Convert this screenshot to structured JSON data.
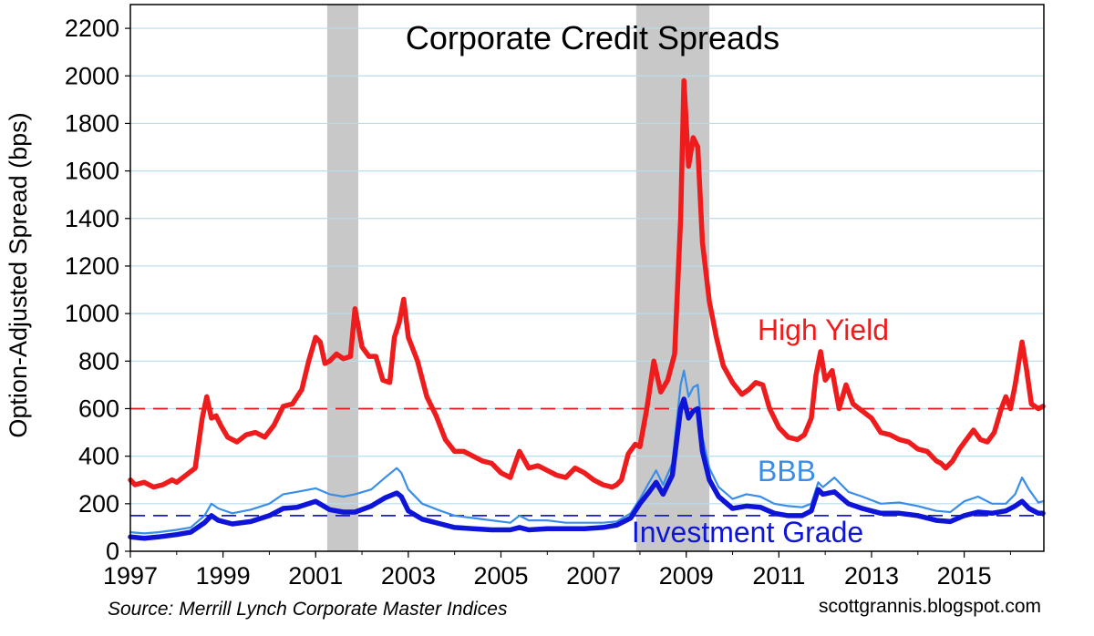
{
  "chart_data": {
    "type": "line",
    "title": "Corporate Credit Spreads",
    "ylabel": "Option-Adjusted Spread (bps)",
    "xlabel": "",
    "xlim": [
      1997.0,
      2016.72
    ],
    "ylim": [
      0,
      2300
    ],
    "x_ticks": [
      "1997",
      "1999",
      "2001",
      "2003",
      "2005",
      "2007",
      "2009",
      "2011",
      "2013",
      "2015"
    ],
    "y_ticks": [
      "0",
      "200",
      "400",
      "600",
      "800",
      "1000",
      "1200",
      "1400",
      "1600",
      "1800",
      "2000",
      "2200"
    ],
    "grid": "horizontal",
    "source": "Source: Merrill Lynch Corporate Master Indices",
    "credit": "scottgrannis.blogspot.com",
    "recessions": [
      [
        2001.25,
        2001.92
      ],
      [
        2007.92,
        2009.5
      ]
    ],
    "reference_lines": [
      {
        "y": 600,
        "color": "#e8141a"
      },
      {
        "y": 150,
        "color": "#1a1ad8"
      }
    ],
    "series": [
      {
        "name": "High Yield",
        "color": "#ee1c1c",
        "x": [
          1997.0,
          1997.1,
          1997.3,
          1997.5,
          1997.7,
          1997.9,
          1998.0,
          1998.2,
          1998.4,
          1998.55,
          1998.65,
          1998.75,
          1998.85,
          1998.95,
          1999.1,
          1999.3,
          1999.5,
          1999.7,
          1999.9,
          2000.1,
          2000.3,
          2000.5,
          2000.6,
          2000.7,
          2000.85,
          2001.0,
          2001.1,
          2001.2,
          2001.3,
          2001.45,
          2001.6,
          2001.75,
          2001.85,
          2002.0,
          2002.15,
          2002.3,
          2002.45,
          2002.6,
          2002.7,
          2002.8,
          2002.9,
          2003.0,
          2003.2,
          2003.4,
          2003.6,
          2003.8,
          2004.0,
          2004.2,
          2004.4,
          2004.6,
          2004.8,
          2005.0,
          2005.2,
          2005.4,
          2005.6,
          2005.8,
          2006.0,
          2006.2,
          2006.4,
          2006.6,
          2006.8,
          2007.0,
          2007.2,
          2007.4,
          2007.5,
          2007.6,
          2007.75,
          2007.9,
          2008.0,
          2008.15,
          2008.3,
          2008.45,
          2008.6,
          2008.75,
          2008.88,
          2008.95,
          2009.05,
          2009.15,
          2009.25,
          2009.35,
          2009.5,
          2009.65,
          2009.8,
          2010.0,
          2010.2,
          2010.35,
          2010.5,
          2010.65,
          2010.8,
          2011.0,
          2011.2,
          2011.4,
          2011.55,
          2011.7,
          2011.8,
          2011.9,
          2012.0,
          2012.15,
          2012.3,
          2012.45,
          2012.6,
          2012.8,
          2013.0,
          2013.2,
          2013.4,
          2013.6,
          2013.8,
          2014.0,
          2014.2,
          2014.4,
          2014.5,
          2014.6,
          2014.75,
          2014.9,
          2015.05,
          2015.2,
          2015.35,
          2015.5,
          2015.65,
          2015.8,
          2015.9,
          2016.0,
          2016.1,
          2016.25,
          2016.35,
          2016.45,
          2016.6,
          2016.7
        ],
        "values": [
          300,
          280,
          290,
          270,
          280,
          300,
          290,
          320,
          350,
          560,
          650,
          560,
          570,
          530,
          480,
          460,
          490,
          500,
          480,
          530,
          610,
          620,
          650,
          680,
          800,
          900,
          880,
          790,
          800,
          830,
          810,
          820,
          1020,
          860,
          820,
          820,
          720,
          710,
          900,
          960,
          1060,
          900,
          800,
          650,
          570,
          470,
          420,
          420,
          400,
          380,
          370,
          330,
          310,
          420,
          350,
          360,
          340,
          320,
          310,
          350,
          330,
          300,
          280,
          270,
          280,
          300,
          410,
          450,
          440,
          600,
          800,
          670,
          720,
          830,
          1400,
          1980,
          1620,
          1740,
          1700,
          1300,
          1050,
          900,
          780,
          710,
          660,
          680,
          710,
          700,
          600,
          520,
          480,
          470,
          490,
          560,
          740,
          840,
          720,
          760,
          600,
          700,
          620,
          590,
          560,
          500,
          490,
          470,
          460,
          430,
          420,
          380,
          370,
          350,
          380,
          430,
          470,
          510,
          470,
          460,
          500,
          600,
          650,
          600,
          700,
          880,
          760,
          620,
          600,
          610
        ]
      },
      {
        "name": "BBB",
        "color": "#3a8ee8",
        "x": [
          1997.0,
          1997.3,
          1997.6,
          1998.0,
          1998.3,
          1998.6,
          1998.75,
          1998.9,
          1999.2,
          1999.6,
          2000.0,
          2000.3,
          2000.6,
          2001.0,
          2001.3,
          2001.6,
          2001.85,
          2002.2,
          2002.5,
          2002.75,
          2002.85,
          2003.0,
          2003.3,
          2003.7,
          2004.0,
          2004.4,
          2004.8,
          2005.2,
          2005.4,
          2005.6,
          2006.0,
          2006.4,
          2006.8,
          2007.2,
          2007.5,
          2007.8,
          2008.0,
          2008.2,
          2008.35,
          2008.5,
          2008.7,
          2008.88,
          2008.95,
          2009.05,
          2009.15,
          2009.25,
          2009.35,
          2009.5,
          2009.7,
          2010.0,
          2010.3,
          2010.6,
          2010.9,
          2011.2,
          2011.5,
          2011.7,
          2011.85,
          2011.95,
          2012.2,
          2012.5,
          2012.8,
          2013.2,
          2013.6,
          2014.0,
          2014.4,
          2014.7,
          2015.0,
          2015.3,
          2015.6,
          2015.9,
          2016.1,
          2016.25,
          2016.4,
          2016.6,
          2016.7
        ],
        "values": [
          80,
          75,
          80,
          90,
          100,
          150,
          200,
          180,
          160,
          175,
          200,
          240,
          250,
          265,
          240,
          230,
          240,
          260,
          310,
          350,
          330,
          260,
          200,
          170,
          150,
          140,
          130,
          120,
          150,
          130,
          130,
          120,
          120,
          120,
          125,
          160,
          220,
          290,
          340,
          280,
          370,
          700,
          760,
          650,
          690,
          700,
          480,
          350,
          270,
          220,
          240,
          230,
          200,
          190,
          185,
          200,
          290,
          270,
          310,
          250,
          230,
          200,
          205,
          190,
          170,
          165,
          210,
          230,
          200,
          200,
          240,
          310,
          260,
          205,
          210
        ]
      },
      {
        "name": "Investment Grade",
        "color": "#0e14d8",
        "x": [
          1997.0,
          1997.3,
          1997.6,
          1998.0,
          1998.3,
          1998.6,
          1998.75,
          1998.9,
          1999.2,
          1999.6,
          2000.0,
          2000.3,
          2000.6,
          2001.0,
          2001.3,
          2001.6,
          2001.85,
          2002.2,
          2002.5,
          2002.75,
          2002.85,
          2003.0,
          2003.3,
          2003.7,
          2004.0,
          2004.4,
          2004.8,
          2005.2,
          2005.4,
          2005.6,
          2006.0,
          2006.4,
          2006.8,
          2007.2,
          2007.5,
          2007.8,
          2008.0,
          2008.2,
          2008.35,
          2008.5,
          2008.7,
          2008.88,
          2008.95,
          2009.05,
          2009.15,
          2009.25,
          2009.35,
          2009.5,
          2009.7,
          2010.0,
          2010.3,
          2010.6,
          2010.9,
          2011.2,
          2011.5,
          2011.7,
          2011.85,
          2011.95,
          2012.2,
          2012.5,
          2012.8,
          2013.2,
          2013.6,
          2014.0,
          2014.4,
          2014.7,
          2015.0,
          2015.3,
          2015.6,
          2015.9,
          2016.1,
          2016.25,
          2016.4,
          2016.6,
          2016.7
        ],
        "values": [
          60,
          55,
          60,
          70,
          80,
          120,
          150,
          130,
          115,
          125,
          150,
          180,
          185,
          210,
          175,
          165,
          165,
          190,
          225,
          245,
          230,
          170,
          135,
          115,
          100,
          95,
          90,
          90,
          100,
          90,
          95,
          95,
          95,
          100,
          110,
          140,
          200,
          250,
          290,
          240,
          320,
          600,
          640,
          560,
          590,
          600,
          420,
          300,
          230,
          180,
          190,
          185,
          160,
          150,
          150,
          170,
          260,
          240,
          250,
          200,
          180,
          160,
          160,
          150,
          130,
          125,
          150,
          165,
          160,
          170,
          190,
          210,
          180,
          160,
          160
        ]
      }
    ]
  }
}
